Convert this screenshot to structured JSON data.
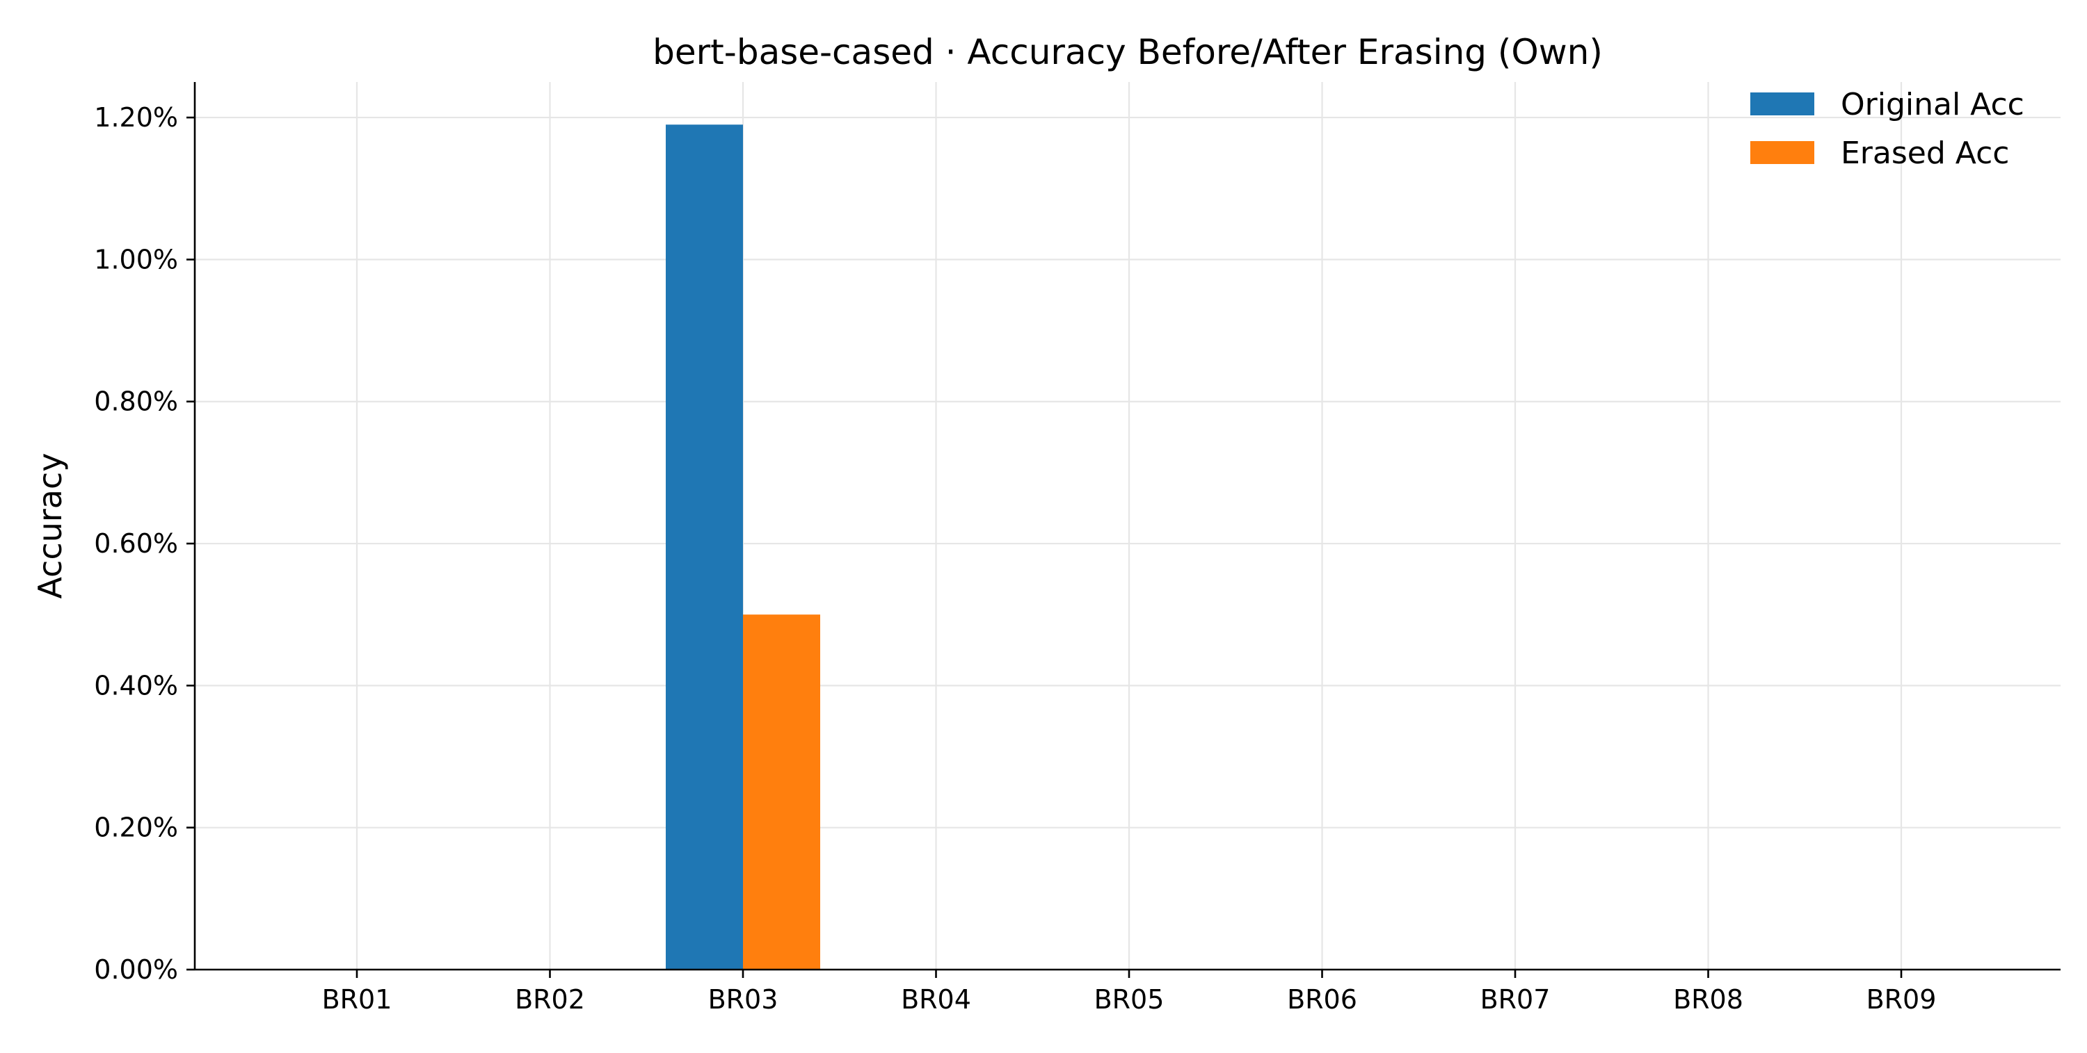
{
  "chart_data": {
    "type": "bar",
    "title": "bert-base-cased · Accuracy Before/After Erasing (Own)",
    "xlabel": "",
    "ylabel": "Accuracy",
    "categories": [
      "BR01",
      "BR02",
      "BR03",
      "BR04",
      "BR05",
      "BR06",
      "BR07",
      "BR08",
      "BR09"
    ],
    "series": [
      {
        "name": "Original Acc",
        "color": "#1f77b4",
        "values": [
          0,
          0,
          1.19,
          0,
          0,
          0,
          0,
          0,
          0
        ]
      },
      {
        "name": "Erased Acc",
        "color": "#ff7f0e",
        "values": [
          0,
          0,
          0.5,
          0,
          0,
          0,
          0,
          0,
          0
        ]
      }
    ],
    "ylim": [
      0,
      1.25
    ],
    "yticks": [
      0,
      0.2,
      0.4,
      0.6,
      0.8,
      1.0,
      1.2
    ],
    "ytick_labels": [
      "0.00%",
      "0.20%",
      "0.40%",
      "0.60%",
      "0.80%",
      "1.00%",
      "1.20%"
    ],
    "grid": true,
    "legend_position": "top-right"
  }
}
